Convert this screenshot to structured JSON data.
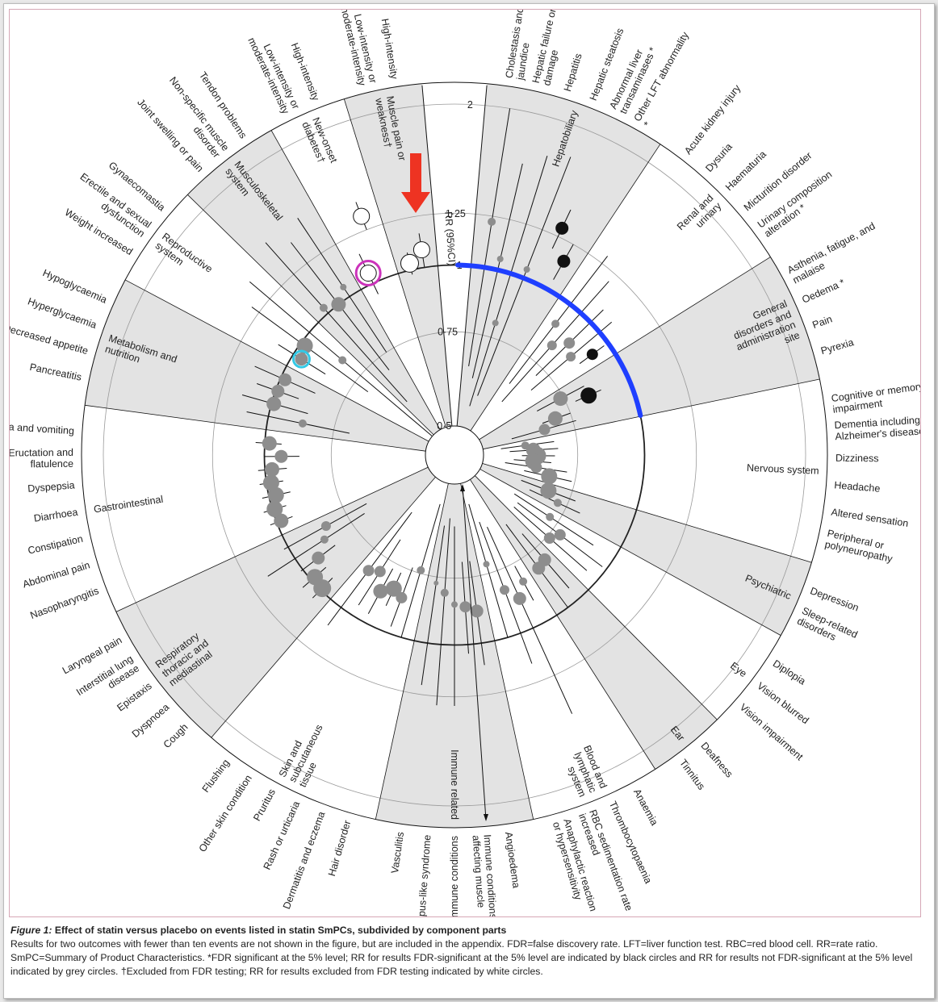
{
  "caption": {
    "figure_label": "Figure 1:",
    "title": "Effect of statin versus placebo on events listed in statin SmPCs, subdivided by component parts",
    "body": "Results for two outcomes with fewer than ten events are not shown in the figure, but are included in the appendix. FDR=false discovery rate. LFT=liver function test. RBC=red blood cell. RR=rate ratio. SmPC=Summary of Product Characteristics. *FDR significant at the 5% level; RR for results FDR-significant at the 5% level are indicated by black circles and RR for results not FDR-significant at the 5% level indicated by grey circles. †Excluded from FDR testing; RR for results excluded from FDR testing indicated by white circles."
  },
  "colors": {
    "shade": "#e3e3e3",
    "grey_point": "#8d8d8d",
    "black_point": "#111111",
    "annotation_blue": "#1f3fff",
    "annotation_red": "#ee3322",
    "annotation_magenta": "#cc33bb",
    "annotation_cyan": "#33c9e6"
  },
  "chart_data": {
    "type": "radial forest plot",
    "axis_label": "RR (95%CI)",
    "axis_ticks": [
      {
        "value": 0.5,
        "label": "0·5"
      },
      {
        "value": 0.75,
        "label": "0·75"
      },
      {
        "value": 1,
        "label": "1"
      },
      {
        "value": 1.25,
        "label": "1·25"
      },
      {
        "value": 2,
        "label": "2"
      }
    ],
    "rr_range": [
      0.5,
      2
    ],
    "point_legend": {
      "black": "FDR-significant at the 5% level",
      "grey": "not FDR-significant at the 5% level",
      "white": "excluded from FDR testing"
    },
    "sectors": [
      {
        "name": "Hepatobiliary",
        "shaded": true,
        "outcomes": [
          {
            "label": "Cholestasis and jaundice",
            "rr": 1.22,
            "lo": 0.65,
            "hi": 2.0,
            "type": "grey",
            "size": 5
          },
          {
            "label": "Hepatic failure or damage",
            "rr": 1.05,
            "lo": 0.62,
            "hi": 1.6,
            "type": "grey",
            "size": 4
          },
          {
            "label": "Hepatitis",
            "rr": 0.8,
            "lo": 0.55,
            "hi": 1.7,
            "type": "grey",
            "size": 4
          },
          {
            "label": "Hepatic steatosis",
            "rr": 1.04,
            "lo": 0.58,
            "hi": 1.75,
            "type": "grey",
            "size": 4
          },
          {
            "label": "Abnormal liver transaminases *",
            "rr": 1.3,
            "lo": 1.18,
            "hi": 1.42,
            "type": "black",
            "size": 8
          },
          {
            "label": "Other LFT abnormality *",
            "rr": 1.15,
            "lo": 1.05,
            "hi": 1.25,
            "type": "black",
            "size": 8
          }
        ]
      },
      {
        "name": "Renal and urinary",
        "shaded": false,
        "outcomes": [
          {
            "label": "Acute kidney injury",
            "rr": 0.9,
            "lo": 0.65,
            "hi": 1.3,
            "type": "grey",
            "size": 5
          },
          {
            "label": "Dysuria",
            "rr": 0.83,
            "lo": 0.6,
            "hi": 1.2,
            "type": "grey",
            "size": 6
          },
          {
            "label": "Haematuria",
            "rr": 0.88,
            "lo": 0.72,
            "hi": 1.08,
            "type": "grey",
            "size": 7
          },
          {
            "label": "Micturition disorder",
            "rr": 0.85,
            "lo": 0.68,
            "hi": 1.07,
            "type": "grey",
            "size": 6
          },
          {
            "label": "Urinary composition alteration *",
            "rr": 0.92,
            "lo": 0.86,
            "hi": 0.98,
            "type": "black",
            "size": 7
          }
        ]
      },
      {
        "name": "General disorders and administration site",
        "shaded": true,
        "outcomes": [
          {
            "label": "Asthenia, fatigue, and malaise",
            "rr": 0.74,
            "lo": 0.66,
            "hi": 0.83,
            "type": "grey",
            "size": 9
          },
          {
            "label": "Oedema *",
            "rr": 0.83,
            "lo": 0.78,
            "hi": 0.88,
            "type": "black",
            "size": 10
          },
          {
            "label": "Pain",
            "rr": 0.7,
            "lo": 0.66,
            "hi": 0.75,
            "type": "grey",
            "size": 9
          },
          {
            "label": "Pyrexia",
            "rr": 0.66,
            "lo": 0.57,
            "hi": 0.76,
            "type": "grey",
            "size": 7
          }
        ]
      },
      {
        "name": "Nervous system",
        "shaded": false,
        "outcomes": [
          {
            "label": "Cognitive or memory impairment",
            "rr": 0.6,
            "lo": 0.54,
            "hi": 0.68,
            "type": "grey",
            "size": 5
          },
          {
            "label": "Dementia including Alzheimer's disease",
            "rr": 0.62,
            "lo": 0.56,
            "hi": 0.69,
            "type": "grey",
            "size": 9
          },
          {
            "label": "Dizziness",
            "rr": 0.63,
            "lo": 0.59,
            "hi": 0.68,
            "type": "grey",
            "size": 11
          },
          {
            "label": "Headache",
            "rr": 0.62,
            "lo": 0.57,
            "hi": 0.67,
            "type": "grey",
            "size": 10
          },
          {
            "label": "Altered sensation",
            "rr": 0.63,
            "lo": 0.55,
            "hi": 0.72,
            "type": "grey",
            "size": 7
          },
          {
            "label": "Peripheral or polyneuropathy",
            "rr": 0.67,
            "lo": 0.6,
            "hi": 0.74,
            "type": "grey",
            "size": 10
          }
        ]
      },
      {
        "name": "Psychiatric",
        "shaded": true,
        "outcomes": [
          {
            "label": "Depression",
            "rr": 0.68,
            "lo": 0.6,
            "hi": 0.77,
            "type": "grey",
            "size": 10
          },
          {
            "label": "Sleep-related disorders",
            "rr": 0.72,
            "lo": 0.63,
            "hi": 0.8,
            "type": "grey",
            "size": 5
          }
        ]
      },
      {
        "name": "Eye",
        "shaded": false,
        "outcomes": [
          {
            "label": "Diplopia",
            "rr": 0.72,
            "lo": 0.6,
            "hi": 0.9,
            "type": "grey",
            "size": 5
          },
          {
            "label": "Vision blurred",
            "rr": 0.78,
            "lo": 0.62,
            "hi": 0.98,
            "type": "grey",
            "size": 7
          },
          {
            "label": "Vision impairment",
            "rr": 0.76,
            "lo": 0.62,
            "hi": 0.94,
            "type": "grey",
            "size": 7
          }
        ]
      },
      {
        "name": "Ear",
        "shaded": true,
        "outcomes": [
          {
            "label": "Deafness",
            "rr": 0.8,
            "lo": 0.69,
            "hi": 0.94,
            "type": "grey",
            "size": 8
          },
          {
            "label": "Tinnitus",
            "rr": 0.81,
            "lo": 0.64,
            "hi": 1.0,
            "type": "grey",
            "size": 8
          }
        ]
      },
      {
        "name": "Blood and lymphatic system",
        "shaded": false,
        "outcomes": [
          {
            "label": "Anaemia",
            "rr": 0.82,
            "lo": 0.76,
            "hi": 0.9,
            "type": "grey",
            "size": 5
          },
          {
            "label": "Thrombocytopaenia",
            "rr": 0.87,
            "lo": 0.62,
            "hi": 1.5,
            "type": "grey",
            "size": 8
          },
          {
            "label": "RBC sedimentation rate increased",
            "rr": 0.82,
            "lo": 0.6,
            "hi": 1.15,
            "type": "grey",
            "size": 6
          },
          {
            "label": "Anaphylactic reaction or hypersensitivity",
            "rr": 0.72,
            "lo": 0.55,
            "hi": 1.0,
            "type": "grey",
            "size": 4
          }
        ]
      },
      {
        "name": "Immune related",
        "shaded": true,
        "outcomes": [
          {
            "label": "Angioedema",
            "rr": 0.87,
            "lo": 0.7,
            "hi": 1.1,
            "type": "grey",
            "size": 8
          },
          {
            "label": "Immune conditions affecting muscle",
            "rr": 0.85,
            "lo": 0.7,
            "hi": 1.04,
            "type": "grey",
            "size": 7
          },
          {
            "label": "Immune conditions",
            "rr": 0.84,
            "lo": 0.6,
            "hi": 1.3,
            "type": "grey",
            "size": 4
          },
          {
            "label": "Lupus-like syndrome",
            "rr": 0.8,
            "lo": 0.58,
            "hi": 1.3,
            "type": "grey",
            "size": 5
          },
          {
            "label": "Vasculitis",
            "rr": 0.77,
            "lo": 0.6,
            "hi": 1.2,
            "type": "grey",
            "size": 3
          }
        ]
      },
      {
        "name": "Skin and subcutaneous tissue",
        "shaded": false,
        "outcomes": [
          {
            "label": "Hair disorder",
            "rr": 0.74,
            "lo": 0.55,
            "hi": 1.0,
            "type": "grey",
            "size": 5
          },
          {
            "label": "Dermatitis and eczema",
            "rr": 0.85,
            "lo": 0.74,
            "hi": 0.97,
            "type": "grey",
            "size": 7
          },
          {
            "label": "Rash or urticaria",
            "rr": 0.83,
            "lo": 0.77,
            "hi": 0.9,
            "type": "grey",
            "size": 10
          },
          {
            "label": "Pruritus",
            "rr": 0.86,
            "lo": 0.77,
            "hi": 0.96,
            "type": "grey",
            "size": 9
          },
          {
            "label": "Other skin condition",
            "rr": 0.8,
            "lo": 0.68,
            "hi": 0.95,
            "type": "grey",
            "size": 7
          },
          {
            "label": "Flushing",
            "rr": 0.82,
            "lo": 0.6,
            "hi": 1.1,
            "type": "grey",
            "size": 7
          }
        ]
      },
      {
        "name": "Respiratory thoracic and mediastinal",
        "shaded": true,
        "outcomes": [
          {
            "label": "Cough",
            "rr": 0.99,
            "lo": 0.93,
            "hi": 1.05,
            "type": "grey",
            "size": 11
          },
          {
            "label": "Dyspnoea",
            "rr": 0.98,
            "lo": 0.92,
            "hi": 1.05,
            "type": "grey",
            "size": 10
          },
          {
            "label": "Epistaxis",
            "rr": 0.92,
            "lo": 0.84,
            "hi": 1.01,
            "type": "grey",
            "size": 8
          },
          {
            "label": "Interstitial lung disease",
            "rr": 0.86,
            "lo": 0.7,
            "hi": 1.15,
            "type": "grey",
            "size": 5
          },
          {
            "label": "Laryngeal pain",
            "rr": 0.83,
            "lo": 0.68,
            "hi": 1.02,
            "type": "grey",
            "size": 6
          }
        ]
      },
      {
        "name": "Gastrointestinal",
        "shaded": false,
        "outcomes": [
          {
            "label": "Nasopharyngitis",
            "rr": 0.98,
            "lo": 0.93,
            "hi": 1.03,
            "type": "grey",
            "size": 9
          },
          {
            "label": "Abdominal pain",
            "rr": 0.99,
            "lo": 0.94,
            "hi": 1.04,
            "type": "grey",
            "size": 10
          },
          {
            "label": "Constipation",
            "rr": 0.97,
            "lo": 0.91,
            "hi": 1.03,
            "type": "grey",
            "size": 10
          },
          {
            "label": "Diarrhoea",
            "rr": 0.98,
            "lo": 0.93,
            "hi": 1.03,
            "type": "grey",
            "size": 10
          },
          {
            "label": "Dyspepsia",
            "rr": 0.97,
            "lo": 0.91,
            "hi": 1.03,
            "type": "grey",
            "size": 9
          },
          {
            "label": "Eructation and flatulence",
            "rr": 0.93,
            "lo": 0.86,
            "hi": 1.0,
            "type": "grey",
            "size": 8
          },
          {
            "label": "Nausea and vomiting",
            "rr": 0.98,
            "lo": 0.93,
            "hi": 1.04,
            "type": "grey",
            "size": 9
          }
        ]
      },
      {
        "name": "Metabolism and nutrition",
        "shaded": true,
        "outcomes": [
          {
            "label": "Pancreatitis",
            "rr": 0.86,
            "lo": 0.7,
            "hi": 1.1,
            "type": "grey",
            "size": 5
          },
          {
            "label": "Decreased appetite",
            "rr": 0.99,
            "lo": 0.85,
            "hi": 1.14,
            "type": "grey",
            "size": 9
          },
          {
            "label": "Hyperglycaemia",
            "rr": 0.99,
            "lo": 0.9,
            "hi": 1.09,
            "type": "grey",
            "size": 8
          },
          {
            "label": "Hypoglycaemia",
            "rr": 0.98,
            "lo": 0.85,
            "hi": 1.13,
            "type": "grey",
            "size": 8
          }
        ]
      },
      {
        "name": "Reproductive system",
        "shaded": false,
        "outcomes": [
          {
            "label": "Weight increased",
            "rr": 0.96,
            "lo": 0.85,
            "hi": 1.08,
            "type": "grey",
            "size": 8
          },
          {
            "label": "Erectile and sexual dysfunction",
            "rr": 0.98,
            "lo": 0.7,
            "hi": 1.3,
            "type": "grey",
            "size": 10
          },
          {
            "label": "Gynaecomastia",
            "rr": 0.83,
            "lo": 0.5,
            "hi": 1.4,
            "type": "grey",
            "size": 5
          }
        ]
      },
      {
        "name": "Musculoskeletal system",
        "shaded": true,
        "outcomes": [
          {
            "label": "Joint swelling or pain",
            "rr": 1.03,
            "lo": 0.6,
            "hi": 1.5,
            "type": "grey",
            "size": 5
          },
          {
            "label": "Non-specific muscle disorder",
            "rr": 1.0,
            "lo": 0.7,
            "hi": 1.4,
            "type": "grey",
            "size": 9
          },
          {
            "label": "Tendon problems",
            "rr": 1.05,
            "lo": 0.75,
            "hi": 1.5,
            "type": "grey",
            "size": 4
          }
        ]
      },
      {
        "name": "New-onset diabetes†",
        "shaded": false,
        "outcomes": [
          {
            "label": "Low-intensity or moderate-intensity",
            "rr": 1.05,
            "lo": 0.95,
            "hi": 1.15,
            "type": "white",
            "size": 10
          },
          {
            "label": "High-intensity",
            "rr": 1.33,
            "lo": 1.25,
            "hi": 1.42,
            "type": "white",
            "size": 10
          }
        ]
      },
      {
        "name": "Muscle pain or weakness†",
        "shaded": true,
        "outcomes": [
          {
            "label": "Low-intensity or moderate-intensity",
            "rr": 1.03,
            "lo": 0.98,
            "hi": 1.08,
            "type": "white",
            "size": 11
          },
          {
            "label": "High-intensity",
            "rr": 1.08,
            "lo": 1.0,
            "hi": 1.16,
            "type": "white",
            "size": 10
          }
        ]
      }
    ],
    "annotations": {
      "blue_arc": "arc at RR = 1 highlighted across hepatobiliary to nervous system sectors",
      "red_arrow": "arrow pointing at the RR (95%CI) axis",
      "magenta_circle": "New-onset diabetes, low-intensity or moderate-intensity",
      "cyan_circle": "Weight increased"
    }
  }
}
